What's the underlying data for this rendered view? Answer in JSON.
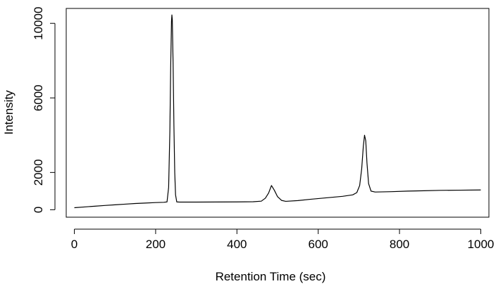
{
  "chart_data": {
    "type": "line",
    "title": "",
    "xlabel": "Retention Time (sec)",
    "ylabel": "Intensity",
    "xlim": [
      -20,
      1020
    ],
    "ylim": [
      -400,
      10800
    ],
    "xticks": [
      0,
      200,
      400,
      600,
      800,
      1000
    ],
    "yticks": [
      0,
      2000,
      6000,
      10000
    ],
    "xtick_labels": [
      "0",
      "200",
      "400",
      "600",
      "800",
      "1000"
    ],
    "ytick_labels": [
      "0",
      "2000",
      "6000",
      "10000"
    ],
    "grid": false,
    "legend": "none",
    "line_color": "#000000",
    "series": [
      {
        "values": [
          {
            "x": 0,
            "y": 110
          },
          {
            "x": 25,
            "y": 150
          },
          {
            "x": 50,
            "y": 190
          },
          {
            "x": 75,
            "y": 230
          },
          {
            "x": 100,
            "y": 265
          },
          {
            "x": 125,
            "y": 300
          },
          {
            "x": 150,
            "y": 335
          },
          {
            "x": 175,
            "y": 360
          },
          {
            "x": 200,
            "y": 385
          },
          {
            "x": 220,
            "y": 400
          },
          {
            "x": 228,
            "y": 420
          },
          {
            "x": 232,
            "y": 1200
          },
          {
            "x": 235,
            "y": 4200
          },
          {
            "x": 237,
            "y": 7600
          },
          {
            "x": 239,
            "y": 10100
          },
          {
            "x": 240,
            "y": 10450
          },
          {
            "x": 241,
            "y": 10200
          },
          {
            "x": 243,
            "y": 7800
          },
          {
            "x": 245,
            "y": 4500
          },
          {
            "x": 247,
            "y": 2000
          },
          {
            "x": 249,
            "y": 800
          },
          {
            "x": 252,
            "y": 420
          },
          {
            "x": 260,
            "y": 410
          },
          {
            "x": 300,
            "y": 410
          },
          {
            "x": 350,
            "y": 415
          },
          {
            "x": 400,
            "y": 420
          },
          {
            "x": 440,
            "y": 430
          },
          {
            "x": 460,
            "y": 460
          },
          {
            "x": 470,
            "y": 620
          },
          {
            "x": 478,
            "y": 900
          },
          {
            "x": 485,
            "y": 1300
          },
          {
            "x": 492,
            "y": 1050
          },
          {
            "x": 500,
            "y": 700
          },
          {
            "x": 510,
            "y": 500
          },
          {
            "x": 520,
            "y": 450
          },
          {
            "x": 550,
            "y": 490
          },
          {
            "x": 580,
            "y": 560
          },
          {
            "x": 620,
            "y": 640
          },
          {
            "x": 660,
            "y": 720
          },
          {
            "x": 685,
            "y": 800
          },
          {
            "x": 695,
            "y": 920
          },
          {
            "x": 702,
            "y": 1300
          },
          {
            "x": 707,
            "y": 2200
          },
          {
            "x": 711,
            "y": 3400
          },
          {
            "x": 714,
            "y": 4000
          },
          {
            "x": 717,
            "y": 3700
          },
          {
            "x": 720,
            "y": 2500
          },
          {
            "x": 724,
            "y": 1400
          },
          {
            "x": 730,
            "y": 1000
          },
          {
            "x": 740,
            "y": 950
          },
          {
            "x": 780,
            "y": 970
          },
          {
            "x": 820,
            "y": 1000
          },
          {
            "x": 860,
            "y": 1020
          },
          {
            "x": 900,
            "y": 1040
          },
          {
            "x": 950,
            "y": 1050
          },
          {
            "x": 1000,
            "y": 1060
          }
        ]
      }
    ]
  }
}
